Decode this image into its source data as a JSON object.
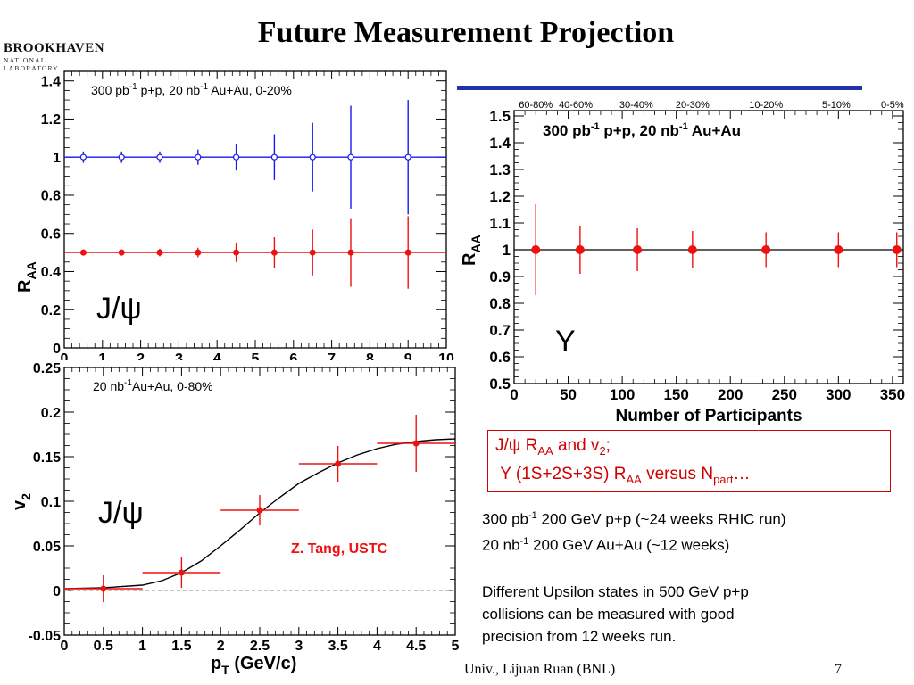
{
  "slide": {
    "title": "Future Measurement Projection",
    "logo_name": "BROOKHAVEN",
    "logo_sub": "NATIONAL LABORATORY",
    "footer": "Univ., Lijuan Ruan (BNL)",
    "page_number": "7"
  },
  "info_box": {
    "line1": [
      "J/ψ R",
      "AA",
      " and v",
      "2",
      ";"
    ],
    "line2": [
      "Υ (1S+2S+3S) R",
      "AA",
      "  versus N",
      "part",
      "…"
    ]
  },
  "notes": {
    "line1": [
      "300 pb",
      "-1",
      " 200 GeV p+p (~24 weeks RHIC run)"
    ],
    "line2": [
      "20 nb",
      "-1",
      " 200 GeV Au+Au (~12 weeks)"
    ],
    "paragraph": [
      "Different Upsilon states in 500 GeV p+p",
      "collisions can be measured with good",
      "precision from 12 weeks run."
    ]
  },
  "chart_data": [
    {
      "type": "scatter",
      "annotation": [
        "300 pb",
        "-1",
        " p+p, 20 nb",
        "-1",
        " Au+Au, 0-20%"
      ],
      "label": "J/ψ",
      "ylabel": "R",
      "ylabel_sub": "AA",
      "xlim": [
        0,
        10
      ],
      "ylim": [
        0,
        1.45
      ],
      "x_ticks": [
        0,
        1,
        2,
        3,
        4,
        5,
        6,
        7,
        8,
        9,
        10
      ],
      "y_ticks": [
        0,
        0.2,
        0.4,
        0.6,
        0.8,
        1,
        1.2,
        1.4
      ],
      "colors": {
        "blue": "#1a1aee",
        "red": "#ee1111"
      },
      "series": [
        {
          "color": "blue",
          "marker": "open",
          "reference_line": 1.0,
          "x": [
            0.5,
            1.5,
            2.5,
            3.5,
            4.5,
            5.5,
            6.5,
            7.5,
            9
          ],
          "y": [
            1,
            1,
            1,
            1,
            1,
            1,
            1,
            1,
            1
          ],
          "yerr": [
            0.03,
            0.03,
            0.03,
            0.04,
            0.07,
            0.12,
            0.18,
            0.27,
            0.3
          ]
        },
        {
          "color": "red",
          "marker": "filled",
          "reference_line": 0.5,
          "x": [
            0.5,
            1.5,
            2.5,
            3.5,
            4.5,
            5.5,
            6.5,
            7.5,
            9
          ],
          "y": [
            0.5,
            0.5,
            0.5,
            0.5,
            0.5,
            0.5,
            0.5,
            0.5,
            0.5
          ],
          "yerr": [
            0.015,
            0.015,
            0.02,
            0.025,
            0.05,
            0.08,
            0.12,
            0.18,
            0.19
          ]
        }
      ]
    },
    {
      "type": "scatter",
      "annotation": [
        "300 pb",
        "-1",
        " p+p, 20 nb",
        "-1",
        " Au+Au"
      ],
      "label": "Υ",
      "ylabel": "R",
      "ylabel_sub": "AA",
      "xlabel": "Number of Participants",
      "xlim": [
        0,
        360
      ],
      "ylim": [
        0.5,
        1.52
      ],
      "x_ticks": [
        0,
        50,
        100,
        150,
        200,
        250,
        300,
        350
      ],
      "y_ticks": [
        0.5,
        0.6,
        0.7,
        0.8,
        0.9,
        1,
        1.1,
        1.2,
        1.3,
        1.4,
        1.5
      ],
      "top_ticks": [
        {
          "label": "60-80%",
          "x": 20
        },
        {
          "label": "40-60%",
          "x": 57
        },
        {
          "label": "30-40%",
          "x": 113
        },
        {
          "label": "20-30%",
          "x": 165
        },
        {
          "label": "10-20%",
          "x": 233
        },
        {
          "label": "5-10%",
          "x": 298
        },
        {
          "label": "0-5%",
          "x": 350
        }
      ],
      "colors": {
        "red": "#ee1111"
      },
      "series": [
        {
          "color": "red",
          "marker": "filled",
          "reference_line": 1.0,
          "x": [
            20,
            61,
            114,
            165,
            233,
            300,
            354
          ],
          "y": [
            1,
            1,
            1,
            1,
            1,
            1,
            1
          ],
          "yerr": [
            0.17,
            0.09,
            0.08,
            0.07,
            0.065,
            0.065,
            0.065
          ]
        }
      ]
    },
    {
      "type": "scatter",
      "annotation": [
        "20 nb",
        "-1",
        "Au+Au, 0-80%"
      ],
      "label": "J/ψ",
      "credit": "Z. Tang, USTC",
      "ylabel": "v",
      "ylabel_sub": "2",
      "xlabel": "p",
      "xlabel_sub": "T",
      "xlabel_unit": " (GeV/c)",
      "xlim": [
        0,
        5
      ],
      "ylim": [
        -0.05,
        0.25
      ],
      "x_ticks": [
        0,
        0.5,
        1,
        1.5,
        2,
        2.5,
        3,
        3.5,
        4,
        4.5,
        5
      ],
      "y_ticks": [
        -0.05,
        0,
        0.05,
        0.1,
        0.15,
        0.2,
        0.25
      ],
      "colors": {
        "red": "#ee1111",
        "curve": "#000000"
      },
      "reference_line_dashed": 0,
      "series": [
        {
          "color": "red",
          "marker": "filled",
          "x": [
            0.5,
            1.5,
            2.5,
            3.5,
            4.5
          ],
          "y": [
            0.002,
            0.02,
            0.09,
            0.142,
            0.165
          ],
          "xerr": [
            0.5,
            0.5,
            0.5,
            0.5,
            0.5
          ],
          "yerr": [
            0.015,
            0.017,
            0.017,
            0.02,
            0.032
          ]
        }
      ],
      "curve": {
        "x": [
          0,
          0.5,
          1,
          1.25,
          1.5,
          1.75,
          2,
          2.25,
          2.5,
          2.75,
          3,
          3.25,
          3.5,
          3.75,
          4,
          4.25,
          4.5,
          4.75,
          5
        ],
        "y": [
          0.002,
          0.003,
          0.006,
          0.011,
          0.02,
          0.033,
          0.05,
          0.068,
          0.087,
          0.104,
          0.12,
          0.132,
          0.143,
          0.152,
          0.159,
          0.164,
          0.167,
          0.169,
          0.17
        ]
      }
    }
  ]
}
